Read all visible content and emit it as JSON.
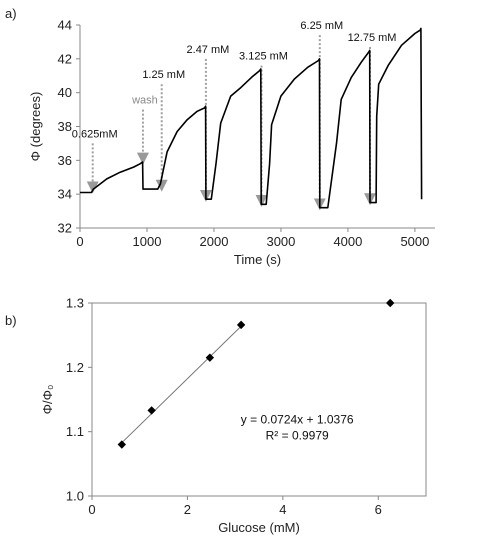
{
  "chart_data": [
    {
      "panel_label": "a)",
      "type": "line",
      "xlabel": "Time (s)",
      "ylabel": "Φ (degrees)",
      "xlim": [
        0,
        5300
      ],
      "ylim": [
        32,
        44
      ],
      "xticks": [
        0,
        1000,
        2000,
        3000,
        4000,
        5000
      ],
      "yticks": [
        32,
        34,
        36,
        38,
        40,
        42,
        44
      ],
      "grid": false,
      "series": [
        {
          "x": [
            0,
            170,
            200,
            400,
            600,
            800,
            900,
            935,
            940,
            990,
            1160,
            1200,
            1300,
            1450,
            1600,
            1750,
            1860,
            1875,
            1880,
            1960,
            2030,
            2100,
            2250,
            2400,
            2560,
            2680,
            2700,
            2705,
            2720,
            2780,
            2830,
            2860,
            3000,
            3200,
            3400,
            3560,
            3575,
            3580,
            3700,
            3830,
            3900,
            4050,
            4200,
            4310,
            4325,
            4330,
            4380,
            4420,
            4430,
            4460,
            4600,
            4800,
            5000,
            5080,
            5090,
            5100
          ],
          "y": [
            34.1,
            34.1,
            34.3,
            34.9,
            35.3,
            35.6,
            35.8,
            35.9,
            34.3,
            34.3,
            34.3,
            34.6,
            36.5,
            37.7,
            38.4,
            38.9,
            39.1,
            39.2,
            33.7,
            33.7,
            35.8,
            38.2,
            39.8,
            40.3,
            40.9,
            41.3,
            41.4,
            33.4,
            33.4,
            33.4,
            35.8,
            38.1,
            39.8,
            40.8,
            41.5,
            41.9,
            42.0,
            33.2,
            33.2,
            37.0,
            39.6,
            40.9,
            41.8,
            42.4,
            42.5,
            33.5,
            33.5,
            33.5,
            38.6,
            40.5,
            41.6,
            42.8,
            43.5,
            43.7,
            43.8,
            33.7
          ]
        }
      ],
      "annotations": [
        {
          "text": "0.625mM",
          "x": 190,
          "y_from": 37.0,
          "y_to": 34.4
        },
        {
          "text": "wash",
          "x": 940,
          "y_from": 39.0,
          "y_to": 36.1
        },
        {
          "text": "1.25 mM",
          "x": 1220,
          "y_from": 40.5,
          "y_to": 34.5
        },
        {
          "text": "2.47 mM",
          "x": 1880,
          "y_from": 42.0,
          "y_to": 33.9
        },
        {
          "text": "3.125 mM",
          "x": 2710,
          "y_from": 41.6,
          "y_to": 33.6
        },
        {
          "text": "6.25 mM",
          "x": 3580,
          "y_from": 43.4,
          "y_to": 33.4
        },
        {
          "text": "12.75 mM",
          "x": 4330,
          "y_from": 42.7,
          "y_to": 33.7
        }
      ]
    },
    {
      "panel_label": "b)",
      "type": "scatter",
      "xlabel": "Glucose (mM)",
      "ylabel": "Φ/Φ₀",
      "xlim": [
        0,
        7
      ],
      "ylim": [
        1.0,
        1.3
      ],
      "xticks": [
        0,
        2,
        4,
        6
      ],
      "yticks": [
        1.0,
        1.1,
        1.2,
        1.3
      ],
      "grid": false,
      "series": [
        {
          "x": [
            0.625,
            1.25,
            2.47,
            3.125,
            6.25
          ],
          "y": [
            1.08,
            1.133,
            1.215,
            1.266,
            1.3
          ]
        }
      ],
      "trendline": {
        "slope": 0.0724,
        "intercept": 1.0376,
        "x_range": [
          0.625,
          3.125
        ]
      },
      "equation": "y = 0.0724x + 1.0376",
      "r_squared": "R² = 0.9979"
    }
  ]
}
